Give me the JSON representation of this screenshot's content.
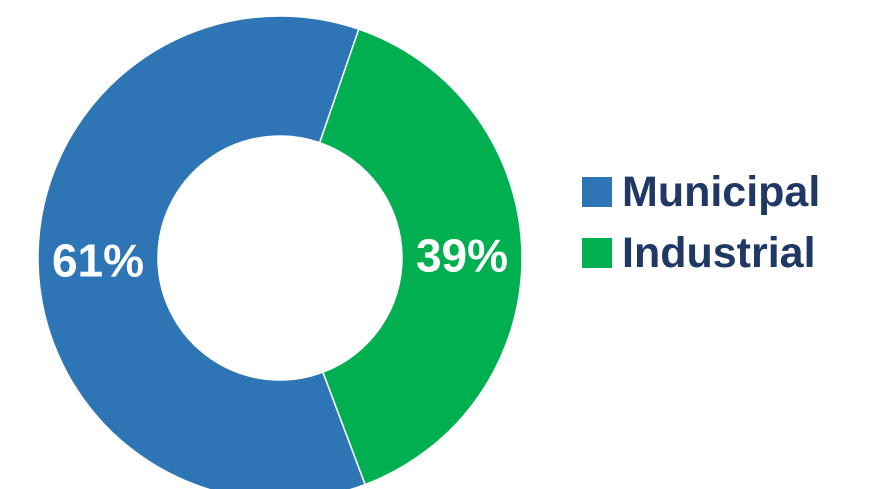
{
  "chart_data": {
    "type": "pie",
    "donut": true,
    "categories": [
      "Municipal",
      "Industrial"
    ],
    "values": [
      61,
      39
    ],
    "data_labels": [
      "61%",
      "39%"
    ],
    "colors": [
      "#2e75b6",
      "#00b050"
    ],
    "legend_position": "right",
    "title": "",
    "xlabel": "",
    "ylabel": ""
  },
  "legend": {
    "items": [
      {
        "label": "Municipal",
        "color": "#2e75b6"
      },
      {
        "label": "Industrial",
        "color": "#00b050"
      }
    ]
  }
}
